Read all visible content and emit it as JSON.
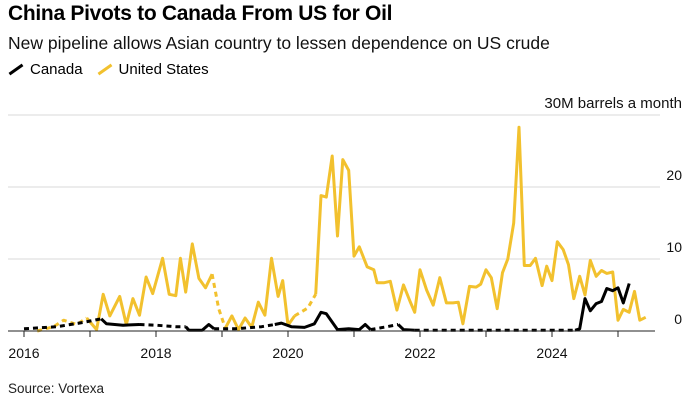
{
  "title": "China Pivots to Canada From US for Oil",
  "subtitle": "New pipeline allows Asian country to lessen dependence on US crude",
  "source": "Source: Vortexa",
  "colors": {
    "canada": "#000000",
    "united_states": "#f2c12e",
    "grid": "#d9d9d9",
    "axis": "#222222"
  },
  "chart_data": {
    "type": "line",
    "title": "China Pivots to Canada From US for Oil",
    "subtitle": "New pipeline allows Asian country to lessen dependence on US crude",
    "unit_label": "30M barrels a month",
    "xlim": [
      2016,
      2025.5
    ],
    "ylim": [
      0,
      30
    ],
    "x_ticks": [
      2016,
      2018,
      2020,
      2022,
      2024
    ],
    "x_tick_labels": [
      "2016",
      "2018",
      "2020",
      "2022",
      "2024"
    ],
    "y_ticks": [
      0,
      10,
      20,
      30
    ],
    "y_tick_labels": [
      "0",
      "10",
      "20",
      "30M barrels a month"
    ],
    "grid": true,
    "legend": [
      "Canada",
      "United States"
    ],
    "series": [
      {
        "name": "Canada",
        "color": "#000000",
        "segments": [
          {
            "style": "dashed",
            "points": [
              [
                2016.0,
                0.3
              ],
              [
                2016.5,
                0.6
              ],
              [
                2016.9,
                1.2
              ],
              [
                2017.17,
                1.7
              ]
            ]
          },
          {
            "style": "solid",
            "points": [
              [
                2017.17,
                1.7
              ],
              [
                2017.25,
                1.0
              ],
              [
                2017.5,
                0.8
              ],
              [
                2017.75,
                0.9
              ]
            ]
          },
          {
            "style": "dashed",
            "points": [
              [
                2017.75,
                0.9
              ],
              [
                2018.0,
                0.8
              ],
              [
                2018.3,
                0.6
              ],
              [
                2018.45,
                0.6
              ]
            ]
          },
          {
            "style": "solid",
            "points": [
              [
                2018.45,
                0.6
              ],
              [
                2018.5,
                0.1
              ],
              [
                2018.7,
                0.1
              ],
              [
                2018.8,
                0.9
              ],
              [
                2018.88,
                0.3
              ]
            ]
          },
          {
            "style": "dashed",
            "points": [
              [
                2018.88,
                0.3
              ],
              [
                2019.2,
                0.3
              ],
              [
                2019.6,
                0.6
              ],
              [
                2019.8,
                0.9
              ]
            ]
          },
          {
            "style": "solid",
            "points": [
              [
                2019.8,
                0.9
              ],
              [
                2019.9,
                1.1
              ],
              [
                2020.05,
                0.6
              ],
              [
                2020.25,
                0.5
              ],
              [
                2020.4,
                1.0
              ],
              [
                2020.5,
                2.6
              ],
              [
                2020.58,
                2.4
              ],
              [
                2020.75,
                0.2
              ],
              [
                2020.92,
                0.3
              ],
              [
                2021.08,
                0.2
              ],
              [
                2021.17,
                0.9
              ],
              [
                2021.25,
                0.2
              ]
            ]
          },
          {
            "style": "dashed",
            "points": [
              [
                2021.25,
                0.2
              ],
              [
                2021.5,
                0.6
              ],
              [
                2021.67,
                0.9
              ]
            ]
          },
          {
            "style": "solid",
            "points": [
              [
                2021.67,
                0.9
              ],
              [
                2021.75,
                0.2
              ],
              [
                2021.92,
                0.1
              ]
            ]
          },
          {
            "style": "dashed",
            "points": [
              [
                2021.92,
                0.1
              ],
              [
                2022.5,
                0.1
              ],
              [
                2023.0,
                0.1
              ],
              [
                2023.5,
                0.1
              ],
              [
                2024.0,
                0.1
              ],
              [
                2024.35,
                0.1
              ]
            ]
          },
          {
            "style": "solid",
            "points": [
              [
                2024.35,
                0.1
              ],
              [
                2024.42,
                0.3
              ],
              [
                2024.5,
                4.5
              ],
              [
                2024.58,
                2.8
              ],
              [
                2024.67,
                3.8
              ],
              [
                2024.75,
                4.1
              ],
              [
                2024.83,
                5.9
              ],
              [
                2024.92,
                5.6
              ],
              [
                2025.0,
                6.0
              ],
              [
                2025.08,
                3.9
              ],
              [
                2025.17,
                6.6
              ]
            ]
          }
        ]
      },
      {
        "name": "United States",
        "color": "#f2c12e",
        "segments": [
          {
            "style": "dashed",
            "points": [
              [
                2016.2,
                0.0
              ],
              [
                2016.45,
                0.6
              ],
              [
                2016.6,
                1.5
              ],
              [
                2016.8,
                0.9
              ],
              [
                2016.95,
                1.8
              ]
            ]
          },
          {
            "style": "solid",
            "points": [
              [
                2016.95,
                1.8
              ],
              [
                2017.1,
                0.2
              ],
              [
                2017.2,
                5.1
              ],
              [
                2017.3,
                2.1
              ],
              [
                2017.45,
                4.8
              ],
              [
                2017.55,
                0.9
              ],
              [
                2017.65,
                4.5
              ],
              [
                2017.75,
                2.2
              ],
              [
                2017.85,
                7.5
              ],
              [
                2017.95,
                5.2
              ],
              [
                2018.1,
                10.1
              ],
              [
                2018.2,
                5.1
              ],
              [
                2018.3,
                4.9
              ],
              [
                2018.37,
                10.1
              ],
              [
                2018.45,
                5.4
              ],
              [
                2018.55,
                12.1
              ],
              [
                2018.65,
                7.3
              ],
              [
                2018.75,
                6.0
              ],
              [
                2018.85,
                7.9
              ]
            ]
          },
          {
            "style": "dashed",
            "points": [
              [
                2018.85,
                7.9
              ],
              [
                2018.95,
                3.1
              ],
              [
                2019.05,
                0.4
              ]
            ]
          },
          {
            "style": "solid",
            "points": [
              [
                2019.05,
                0.4
              ],
              [
                2019.15,
                2.1
              ],
              [
                2019.25,
                0.2
              ],
              [
                2019.35,
                1.8
              ],
              [
                2019.45,
                0.5
              ],
              [
                2019.55,
                4.0
              ],
              [
                2019.65,
                2.2
              ],
              [
                2019.75,
                10.1
              ],
              [
                2019.85,
                4.8
              ],
              [
                2019.92,
                7.0
              ],
              [
                2020.0,
                0.8
              ],
              [
                2020.1,
                2.1
              ]
            ]
          },
          {
            "style": "dashed",
            "points": [
              [
                2020.1,
                2.1
              ],
              [
                2020.3,
                3.2
              ],
              [
                2020.42,
                5.1
              ]
            ]
          },
          {
            "style": "solid",
            "points": [
              [
                2020.42,
                5.1
              ],
              [
                2020.5,
                18.8
              ],
              [
                2020.58,
                18.6
              ],
              [
                2020.67,
                24.3
              ],
              [
                2020.75,
                13.2
              ],
              [
                2020.83,
                23.8
              ],
              [
                2020.92,
                22.3
              ],
              [
                2021.0,
                10.4
              ],
              [
                2021.08,
                11.7
              ],
              [
                2021.2,
                8.9
              ],
              [
                2021.3,
                8.5
              ],
              [
                2021.35,
                6.7
              ],
              [
                2021.45,
                6.7
              ],
              [
                2021.55,
                6.9
              ],
              [
                2021.65,
                2.9
              ],
              [
                2021.75,
                6.4
              ],
              [
                2021.85,
                4.1
              ],
              [
                2021.92,
                2.6
              ],
              [
                2022.0,
                8.5
              ],
              [
                2022.1,
                5.7
              ],
              [
                2022.2,
                3.6
              ],
              [
                2022.3,
                7.4
              ],
              [
                2022.4,
                3.9
              ],
              [
                2022.5,
                3.9
              ],
              [
                2022.58,
                4.0
              ],
              [
                2022.65,
                1.0
              ],
              [
                2022.75,
                6.2
              ],
              [
                2022.85,
                6.1
              ],
              [
                2022.92,
                6.5
              ],
              [
                2023.0,
                8.5
              ],
              [
                2023.08,
                7.4
              ],
              [
                2023.17,
                3.1
              ],
              [
                2023.25,
                8.1
              ],
              [
                2023.33,
                10.0
              ],
              [
                2023.42,
                15.0
              ],
              [
                2023.5,
                28.3
              ],
              [
                2023.58,
                9.1
              ],
              [
                2023.67,
                9.1
              ],
              [
                2023.75,
                10.1
              ],
              [
                2023.85,
                6.3
              ],
              [
                2023.92,
                9.0
              ],
              [
                2024.0,
                7.0
              ],
              [
                2024.08,
                12.4
              ],
              [
                2024.17,
                11.3
              ],
              [
                2024.25,
                9.2
              ],
              [
                2024.33,
                4.5
              ],
              [
                2024.42,
                7.6
              ],
              [
                2024.5,
                5.0
              ],
              [
                2024.58,
                9.8
              ],
              [
                2024.67,
                7.6
              ],
              [
                2024.75,
                8.4
              ],
              [
                2024.83,
                8.0
              ],
              [
                2024.92,
                8.2
              ],
              [
                2025.0,
                1.5
              ],
              [
                2025.08,
                3.0
              ],
              [
                2025.17,
                2.6
              ],
              [
                2025.25,
                5.5
              ],
              [
                2025.33,
                1.5
              ],
              [
                2025.42,
                1.9
              ]
            ]
          }
        ]
      }
    ]
  }
}
